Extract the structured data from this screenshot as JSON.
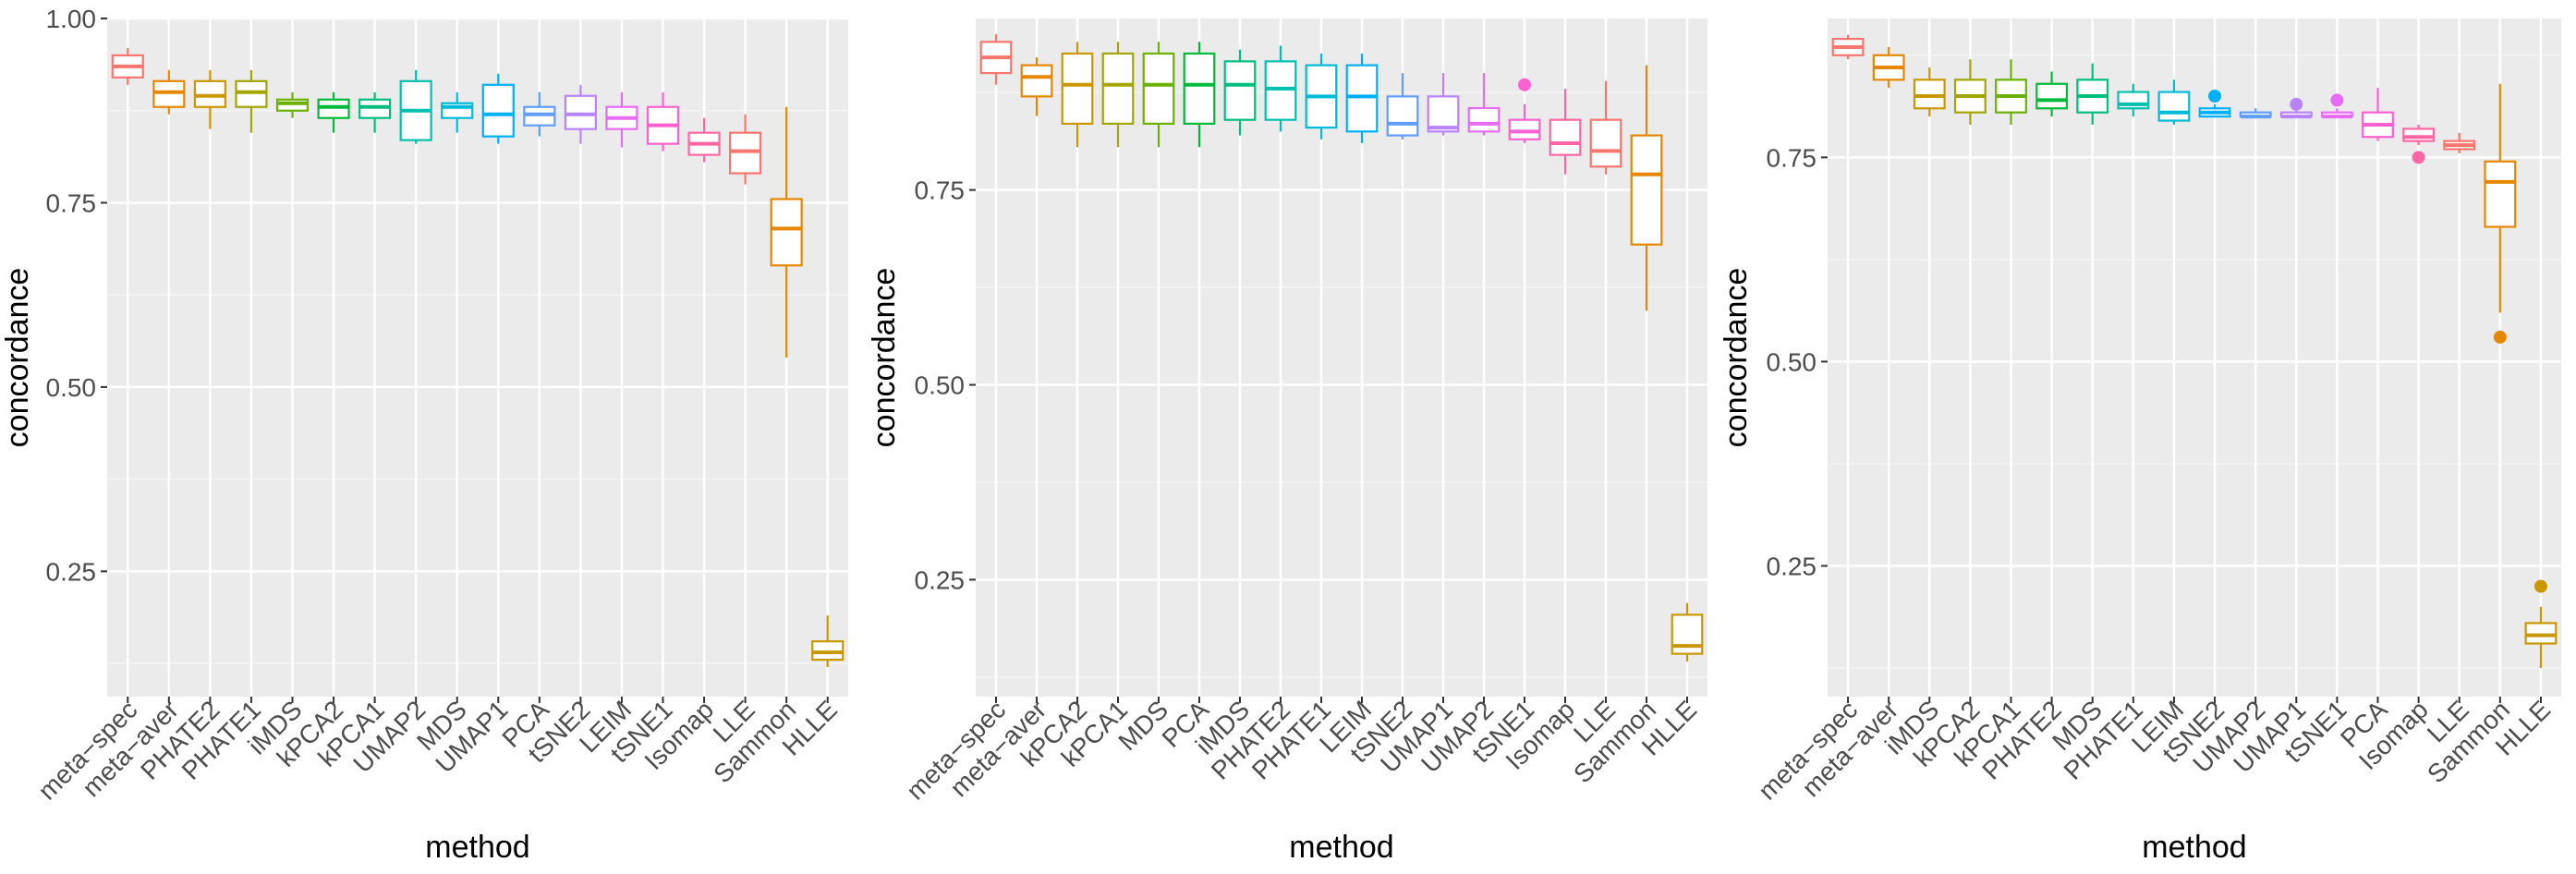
{
  "chart_data": [
    {
      "type": "boxplot",
      "title": "",
      "xlabel": "method",
      "ylabel": "concordance",
      "ylim": [
        0.08,
        1.0
      ],
      "yticks": [
        0.25,
        0.5,
        0.75,
        1.0
      ],
      "ytick_labels": [
        "0.25",
        "0.50",
        "0.75",
        "1.00"
      ],
      "categories": [
        "meta−spec",
        "meta−aver",
        "PHATE2",
        "PHATE1",
        "iMDS",
        "kPCA2",
        "kPCA1",
        "UMAP2",
        "MDS",
        "UMAP1",
        "PCA",
        "tSNE2",
        "LEIM",
        "tSNE1",
        "Isomap",
        "LLE",
        "Sammon",
        "HLLE"
      ],
      "colors": [
        "#F8766D",
        "#E58700",
        "#C99800",
        "#A3A500",
        "#6BB100",
        "#00BA38",
        "#00BF7D",
        "#00C0AF",
        "#00BCD8",
        "#00B0F6",
        "#619CFF",
        "#B983FF",
        "#E76BF3",
        "#FD61D1",
        "#FF67A4",
        "#F8766D",
        "#E58700",
        "#C99800"
      ],
      "boxes": [
        {
          "whislo": 0.91,
          "q1": 0.92,
          "med": 0.935,
          "q3": 0.95,
          "whishi": 0.96,
          "fliers": []
        },
        {
          "whislo": 0.87,
          "q1": 0.88,
          "med": 0.9,
          "q3": 0.915,
          "whishi": 0.93,
          "fliers": []
        },
        {
          "whislo": 0.85,
          "q1": 0.88,
          "med": 0.895,
          "q3": 0.915,
          "whishi": 0.93,
          "fliers": []
        },
        {
          "whislo": 0.845,
          "q1": 0.88,
          "med": 0.9,
          "q3": 0.915,
          "whishi": 0.93,
          "fliers": []
        },
        {
          "whislo": 0.865,
          "q1": 0.875,
          "med": 0.885,
          "q3": 0.89,
          "whishi": 0.9,
          "fliers": []
        },
        {
          "whislo": 0.845,
          "q1": 0.865,
          "med": 0.88,
          "q3": 0.89,
          "whishi": 0.9,
          "fliers": []
        },
        {
          "whislo": 0.845,
          "q1": 0.865,
          "med": 0.88,
          "q3": 0.89,
          "whishi": 0.9,
          "fliers": []
        },
        {
          "whislo": 0.83,
          "q1": 0.835,
          "med": 0.875,
          "q3": 0.915,
          "whishi": 0.93,
          "fliers": []
        },
        {
          "whislo": 0.845,
          "q1": 0.865,
          "med": 0.88,
          "q3": 0.885,
          "whishi": 0.9,
          "fliers": []
        },
        {
          "whislo": 0.83,
          "q1": 0.84,
          "med": 0.87,
          "q3": 0.91,
          "whishi": 0.925,
          "fliers": []
        },
        {
          "whislo": 0.84,
          "q1": 0.855,
          "med": 0.87,
          "q3": 0.88,
          "whishi": 0.9,
          "fliers": []
        },
        {
          "whislo": 0.83,
          "q1": 0.85,
          "med": 0.87,
          "q3": 0.895,
          "whishi": 0.91,
          "fliers": []
        },
        {
          "whislo": 0.825,
          "q1": 0.85,
          "med": 0.865,
          "q3": 0.88,
          "whishi": 0.9,
          "fliers": []
        },
        {
          "whislo": 0.82,
          "q1": 0.83,
          "med": 0.855,
          "q3": 0.88,
          "whishi": 0.9,
          "fliers": []
        },
        {
          "whislo": 0.805,
          "q1": 0.815,
          "med": 0.83,
          "q3": 0.845,
          "whishi": 0.865,
          "fliers": []
        },
        {
          "whislo": 0.775,
          "q1": 0.79,
          "med": 0.82,
          "q3": 0.845,
          "whishi": 0.87,
          "fliers": []
        },
        {
          "whislo": 0.54,
          "q1": 0.665,
          "med": 0.715,
          "q3": 0.755,
          "whishi": 0.88,
          "fliers": []
        },
        {
          "whislo": 0.12,
          "q1": 0.13,
          "med": 0.14,
          "q3": 0.155,
          "whishi": 0.19,
          "fliers": []
        }
      ]
    },
    {
      "type": "boxplot",
      "title": "",
      "xlabel": "method",
      "ylabel": "concordance",
      "ylim": [
        0.1,
        0.97
      ],
      "yticks": [
        0.25,
        0.5,
        0.75
      ],
      "ytick_labels": [
        "0.25",
        "0.50",
        "0.75"
      ],
      "categories": [
        "meta−spec",
        "meta−aver",
        "kPCA2",
        "kPCA1",
        "MDS",
        "PCA",
        "iMDS",
        "PHATE2",
        "PHATE1",
        "LEIM",
        "tSNE2",
        "UMAP1",
        "UMAP2",
        "tSNE1",
        "Isomap",
        "LLE",
        "Sammon",
        "HLLE"
      ],
      "colors": [
        "#F8766D",
        "#E58700",
        "#C99800",
        "#A3A500",
        "#6BB100",
        "#00BA38",
        "#00BF7D",
        "#00C0AF",
        "#00BCD8",
        "#00B0F6",
        "#619CFF",
        "#B983FF",
        "#E76BF3",
        "#FD61D1",
        "#FF67A4",
        "#F8766D",
        "#E58700",
        "#C99800"
      ],
      "boxes": [
        {
          "whislo": 0.885,
          "q1": 0.9,
          "med": 0.92,
          "q3": 0.94,
          "whishi": 0.95,
          "fliers": []
        },
        {
          "whislo": 0.845,
          "q1": 0.87,
          "med": 0.895,
          "q3": 0.91,
          "whishi": 0.92,
          "fliers": []
        },
        {
          "whislo": 0.805,
          "q1": 0.835,
          "med": 0.885,
          "q3": 0.925,
          "whishi": 0.94,
          "fliers": []
        },
        {
          "whislo": 0.805,
          "q1": 0.835,
          "med": 0.885,
          "q3": 0.925,
          "whishi": 0.94,
          "fliers": []
        },
        {
          "whislo": 0.805,
          "q1": 0.835,
          "med": 0.885,
          "q3": 0.925,
          "whishi": 0.94,
          "fliers": []
        },
        {
          "whislo": 0.805,
          "q1": 0.835,
          "med": 0.885,
          "q3": 0.925,
          "whishi": 0.94,
          "fliers": []
        },
        {
          "whislo": 0.82,
          "q1": 0.84,
          "med": 0.885,
          "q3": 0.915,
          "whishi": 0.93,
          "fliers": []
        },
        {
          "whislo": 0.825,
          "q1": 0.84,
          "med": 0.88,
          "q3": 0.915,
          "whishi": 0.935,
          "fliers": []
        },
        {
          "whislo": 0.815,
          "q1": 0.83,
          "med": 0.87,
          "q3": 0.91,
          "whishi": 0.925,
          "fliers": []
        },
        {
          "whislo": 0.81,
          "q1": 0.825,
          "med": 0.87,
          "q3": 0.91,
          "whishi": 0.925,
          "fliers": []
        },
        {
          "whislo": 0.815,
          "q1": 0.82,
          "med": 0.835,
          "q3": 0.87,
          "whishi": 0.9,
          "fliers": []
        },
        {
          "whislo": 0.82,
          "q1": 0.825,
          "med": 0.83,
          "q3": 0.87,
          "whishi": 0.9,
          "fliers": []
        },
        {
          "whislo": 0.82,
          "q1": 0.825,
          "med": 0.835,
          "q3": 0.855,
          "whishi": 0.9,
          "fliers": []
        },
        {
          "whislo": 0.81,
          "q1": 0.815,
          "med": 0.825,
          "q3": 0.84,
          "whishi": 0.86,
          "fliers": [
            0.885
          ]
        },
        {
          "whislo": 0.77,
          "q1": 0.795,
          "med": 0.81,
          "q3": 0.84,
          "whishi": 0.88,
          "fliers": []
        },
        {
          "whislo": 0.77,
          "q1": 0.78,
          "med": 0.8,
          "q3": 0.84,
          "whishi": 0.89,
          "fliers": []
        },
        {
          "whislo": 0.595,
          "q1": 0.68,
          "med": 0.77,
          "q3": 0.82,
          "whishi": 0.91,
          "fliers": []
        },
        {
          "whislo": 0.145,
          "q1": 0.155,
          "med": 0.165,
          "q3": 0.205,
          "whishi": 0.22,
          "fliers": []
        }
      ]
    },
    {
      "type": "boxplot",
      "title": "",
      "xlabel": "method",
      "ylabel": "concordance",
      "ylim": [
        0.09,
        0.92
      ],
      "yticks": [
        0.25,
        0.5,
        0.75
      ],
      "ytick_labels": [
        "0.25",
        "0.50",
        "0.75"
      ],
      "categories": [
        "meta−spec",
        "meta−aver",
        "iMDS",
        "kPCA2",
        "kPCA1",
        "PHATE2",
        "MDS",
        "PHATE1",
        "LEIM",
        "tSNE2",
        "UMAP2",
        "UMAP1",
        "tSNE1",
        "PCA",
        "Isomap",
        "LLE",
        "Sammon",
        "HLLE"
      ],
      "colors": [
        "#F8766D",
        "#E58700",
        "#C99800",
        "#A3A500",
        "#6BB100",
        "#00BA38",
        "#00BF7D",
        "#00C0AF",
        "#00BCD8",
        "#00B0F6",
        "#619CFF",
        "#B983FF",
        "#E76BF3",
        "#FD61D1",
        "#FF67A4",
        "#F8766D",
        "#E58700",
        "#C99800"
      ],
      "boxes": [
        {
          "whislo": 0.87,
          "q1": 0.875,
          "med": 0.885,
          "q3": 0.895,
          "whishi": 0.9,
          "fliers": []
        },
        {
          "whislo": 0.835,
          "q1": 0.845,
          "med": 0.86,
          "q3": 0.875,
          "whishi": 0.885,
          "fliers": []
        },
        {
          "whislo": 0.8,
          "q1": 0.81,
          "med": 0.825,
          "q3": 0.845,
          "whishi": 0.86,
          "fliers": []
        },
        {
          "whislo": 0.79,
          "q1": 0.805,
          "med": 0.825,
          "q3": 0.845,
          "whishi": 0.87,
          "fliers": []
        },
        {
          "whislo": 0.79,
          "q1": 0.805,
          "med": 0.825,
          "q3": 0.845,
          "whishi": 0.87,
          "fliers": []
        },
        {
          "whislo": 0.8,
          "q1": 0.81,
          "med": 0.82,
          "q3": 0.84,
          "whishi": 0.855,
          "fliers": []
        },
        {
          "whislo": 0.79,
          "q1": 0.805,
          "med": 0.825,
          "q3": 0.845,
          "whishi": 0.865,
          "fliers": []
        },
        {
          "whislo": 0.8,
          "q1": 0.81,
          "med": 0.815,
          "q3": 0.83,
          "whishi": 0.84,
          "fliers": []
        },
        {
          "whislo": 0.79,
          "q1": 0.795,
          "med": 0.805,
          "q3": 0.83,
          "whishi": 0.845,
          "fliers": []
        },
        {
          "whislo": 0.8,
          "q1": 0.8,
          "med": 0.805,
          "q3": 0.81,
          "whishi": 0.815,
          "fliers": [
            0.825
          ]
        },
        {
          "whislo": 0.8,
          "q1": 0.8,
          "med": 0.8,
          "q3": 0.805,
          "whishi": 0.81,
          "fliers": []
        },
        {
          "whislo": 0.8,
          "q1": 0.8,
          "med": 0.8,
          "q3": 0.805,
          "whishi": 0.81,
          "fliers": [
            0.815
          ]
        },
        {
          "whislo": 0.8,
          "q1": 0.8,
          "med": 0.8,
          "q3": 0.805,
          "whishi": 0.81,
          "fliers": [
            0.82
          ]
        },
        {
          "whislo": 0.77,
          "q1": 0.775,
          "med": 0.79,
          "q3": 0.805,
          "whishi": 0.835,
          "fliers": []
        },
        {
          "whislo": 0.765,
          "q1": 0.77,
          "med": 0.775,
          "q3": 0.785,
          "whishi": 0.79,
          "fliers": [
            0.75
          ]
        },
        {
          "whislo": 0.755,
          "q1": 0.76,
          "med": 0.765,
          "q3": 0.77,
          "whishi": 0.78,
          "fliers": []
        },
        {
          "whislo": 0.56,
          "q1": 0.665,
          "med": 0.72,
          "q3": 0.745,
          "whishi": 0.84,
          "fliers": [
            0.53
          ]
        },
        {
          "whislo": 0.125,
          "q1": 0.155,
          "med": 0.165,
          "q3": 0.18,
          "whishi": 0.2,
          "fliers": [
            0.225
          ]
        }
      ]
    }
  ]
}
